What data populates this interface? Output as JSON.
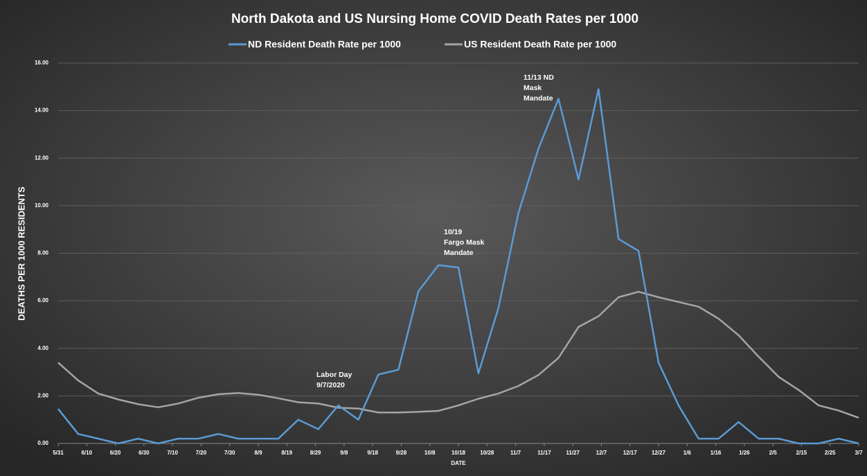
{
  "chart_data": {
    "type": "line",
    "title": "North Dakota and US Nursing Home COVID Death Rates per 1000",
    "xlabel": "DATE",
    "ylabel": "DEATHS PER 1000 RESIDENTS",
    "x": [
      "5/31",
      "6/7",
      "6/14",
      "6/21",
      "6/28",
      "7/5",
      "7/12",
      "7/19",
      "7/26",
      "8/2",
      "8/9",
      "8/16",
      "8/23",
      "8/30",
      "9/6",
      "9/13",
      "9/20",
      "9/27",
      "10/4",
      "10/11",
      "10/18",
      "10/25",
      "11/1",
      "11/8",
      "11/15",
      "11/22",
      "11/29",
      "12/6",
      "12/13",
      "12/20",
      "12/27",
      "1/3",
      "1/10",
      "1/17",
      "1/24",
      "1/31",
      "2/7",
      "2/14",
      "2/21",
      "2/28",
      "3/7"
    ],
    "series": [
      {
        "name": "ND Resident Death Rate per 1000",
        "color": "#5b9bd5",
        "values": [
          1.45,
          0.4,
          0.2,
          0,
          0.2,
          0,
          0.2,
          0.2,
          0.4,
          0.2,
          0.2,
          0.2,
          1.0,
          0.6,
          1.6,
          1.0,
          2.9,
          3.1,
          6.4,
          7.5,
          7.4,
          2.95,
          5.7,
          9.7,
          12.4,
          14.5,
          11.1,
          14.9,
          8.6,
          8.1,
          3.4,
          1.6,
          0.2,
          0.2,
          0.9,
          0.2,
          0.2,
          0,
          0,
          0.2,
          0
        ]
      },
      {
        "name": "US Resident Death Rate per 1000",
        "color": "#a5a5a5",
        "values": [
          3.4,
          2.65,
          2.1,
          1.85,
          1.65,
          1.52,
          1.68,
          1.92,
          2.07,
          2.12,
          2.05,
          1.9,
          1.73,
          1.68,
          1.5,
          1.47,
          1.3,
          1.3,
          1.33,
          1.37,
          1.6,
          1.88,
          2.1,
          2.42,
          2.88,
          3.6,
          4.9,
          5.35,
          6.15,
          6.38,
          6.15,
          5.95,
          5.75,
          5.25,
          4.55,
          3.65,
          2.8,
          2.25,
          1.6,
          1.38,
          1.08
        ]
      }
    ],
    "xlim": [
      "5/31",
      "3/7"
    ],
    "xticks": [
      "5/31",
      "6/10",
      "6/20",
      "6/30",
      "7/10",
      "7/20",
      "7/30",
      "8/9",
      "8/19",
      "8/29",
      "9/8",
      "9/18",
      "9/28",
      "10/8",
      "10/18",
      "10/28",
      "11/7",
      "11/17",
      "11/27",
      "12/7",
      "12/17",
      "12/27",
      "1/6",
      "1/16",
      "1/26",
      "2/5",
      "2/15",
      "2/25",
      "3/7"
    ],
    "ylim": [
      0,
      16
    ],
    "yticks": [
      {
        "value": 0,
        "label": "0.00"
      },
      {
        "value": 2,
        "label": "2.00"
      },
      {
        "value": 4,
        "label": "4.00"
      },
      {
        "value": 6,
        "label": "6.00"
      },
      {
        "value": 8,
        "label": "8.00"
      },
      {
        "value": 10,
        "label": "10.00"
      },
      {
        "value": 12,
        "label": "12.00"
      },
      {
        "value": 14,
        "label": "14.00"
      },
      {
        "value": 16,
        "label": "16.00"
      }
    ],
    "grid": true,
    "legend": "top",
    "annotations": [
      {
        "lines": [
          "Labor Day",
          "9/7/2020"
        ]
      },
      {
        "lines": [
          "10/19",
          "Fargo Mask",
          "Mandate"
        ]
      },
      {
        "lines": [
          "11/13 ND",
          "Mask",
          "Mandate"
        ]
      }
    ]
  }
}
